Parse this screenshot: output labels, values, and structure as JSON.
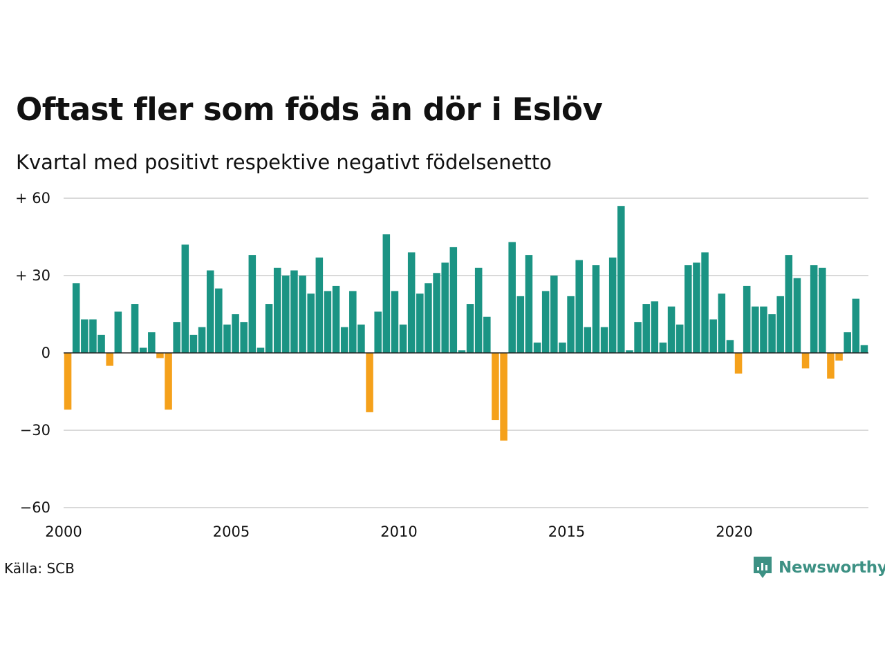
{
  "title": "Oftast fler som föds än dör i Eslöv",
  "subtitle": "Kvartal med positivt respektive negativt födelsenetto",
  "source": "Källa: SCB",
  "brand": "Newsworthy",
  "colors": {
    "positive": "#1b9484",
    "negative": "#f5a11b",
    "grid": "#d9d9d9",
    "axis": "#222222",
    "brand": "#3d9184"
  },
  "icons": {
    "logo": "newsworthy-logo-icon"
  },
  "chart_data": {
    "type": "bar",
    "title": "Oftast fler som föds än dör i Eslöv",
    "subtitle": "Kvartal med positivt respektive negativt födelsenetto",
    "start_year": 2000,
    "periods_per_year": 4,
    "ylim": [
      -60,
      60
    ],
    "yticks": [
      {
        "value": 60,
        "label": "+ 60"
      },
      {
        "value": 30,
        "label": "+ 30"
      },
      {
        "value": 0,
        "label": "0"
      },
      {
        "value": -30,
        "label": "−30"
      },
      {
        "value": -60,
        "label": "−60"
      }
    ],
    "xticks": [
      {
        "year": 2000,
        "label": "2000"
      },
      {
        "year": 2005,
        "label": "2005"
      },
      {
        "year": 2010,
        "label": "2010"
      },
      {
        "year": 2015,
        "label": "2015"
      },
      {
        "year": 2020,
        "label": "2020"
      }
    ],
    "grid": true,
    "values": [
      -22,
      27,
      13,
      13,
      7,
      -5,
      16,
      0,
      19,
      2,
      8,
      -2,
      -22,
      12,
      42,
      7,
      10,
      32,
      25,
      11,
      15,
      12,
      38,
      2,
      19,
      33,
      30,
      32,
      30,
      23,
      37,
      24,
      26,
      10,
      24,
      11,
      -23,
      16,
      46,
      24,
      11,
      39,
      23,
      27,
      31,
      35,
      41,
      1,
      19,
      33,
      14,
      -26,
      -34,
      43,
      22,
      38,
      4,
      24,
      30,
      4,
      22,
      36,
      10,
      34,
      10,
      37,
      57,
      1,
      12,
      19,
      20,
      4,
      18,
      11,
      34,
      35,
      39,
      13,
      23,
      5,
      -8,
      26,
      18,
      18,
      15,
      22,
      38,
      29,
      -6,
      34,
      33,
      -10,
      -3,
      8,
      21,
      3
    ]
  }
}
